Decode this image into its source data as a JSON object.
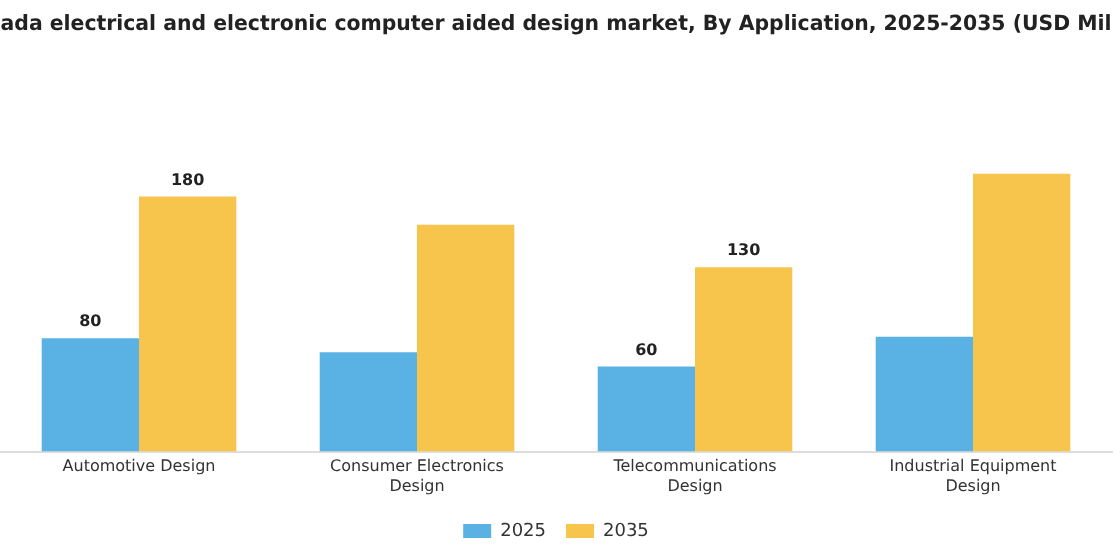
{
  "chart_data": {
    "type": "bar",
    "title": "ada electrical and electronic computer aided design market, By Application, 2025-2035 (USD Mil",
    "categories": [
      "Automotive Design",
      [
        "Consumer Electronics",
        "Design"
      ],
      [
        "Telecommunications",
        "Design"
      ],
      [
        "Industrial Equipment",
        "Design"
      ]
    ],
    "series": [
      {
        "name": "2025",
        "color": "#5ab2e4",
        "values": [
          80,
          70,
          60,
          81
        ],
        "value_labels": [
          "80",
          null,
          "60",
          null
        ]
      },
      {
        "name": "2035",
        "color": "#f7c44c",
        "values": [
          180,
          160,
          130,
          196
        ],
        "value_labels": [
          "180",
          null,
          "130",
          null
        ]
      }
    ],
    "legend": "bottom",
    "grid": false,
    "tick_labels": "x"
  }
}
